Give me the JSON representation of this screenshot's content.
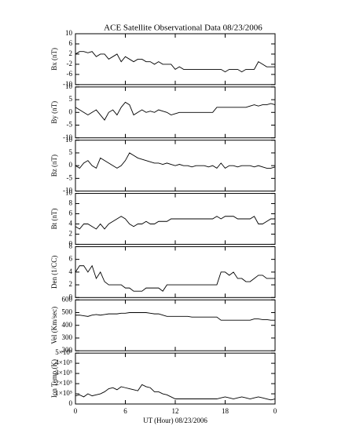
{
  "chart_data": [
    {
      "type": "line",
      "title": "ACE Satellite Observational Data   08/23/2006",
      "ylabel": "Bx (nT)",
      "color": "#000000",
      "ylim": [
        -10,
        10
      ],
      "yticks": [
        -10,
        -6,
        -2,
        2,
        6,
        10
      ],
      "x": [
        0,
        0.5,
        1,
        1.5,
        2,
        2.5,
        3,
        3.5,
        4,
        4.5,
        5,
        5.5,
        6,
        6.5,
        7,
        7.5,
        8,
        8.5,
        9,
        9.5,
        10,
        10.5,
        11,
        11.5,
        12,
        12.5,
        13,
        13.5,
        14,
        14.5,
        15,
        15.5,
        16,
        16.5,
        17,
        17.5,
        18,
        18.5,
        19,
        19.5,
        20,
        20.5,
        21,
        21.5,
        22,
        22.5,
        23,
        23.5,
        24
      ],
      "values": [
        2,
        3,
        3,
        2.5,
        3,
        1,
        2,
        2,
        0,
        1,
        2,
        -1,
        1,
        0,
        -1,
        0,
        0,
        -1,
        -1,
        -2,
        -1,
        -2,
        -2,
        -2,
        -4,
        -3,
        -4,
        -4,
        -4,
        -4,
        -4,
        -4,
        -4,
        -4,
        -4,
        -4,
        -5,
        -4,
        -4,
        -4,
        -5,
        -4,
        -4,
        -4,
        -1,
        -2,
        -3,
        -3,
        -3
      ]
    },
    {
      "type": "line",
      "ylabel": "By (nT)",
      "color": "#000000",
      "ylim": [
        -10,
        10
      ],
      "yticks": [
        -10,
        -5,
        0,
        5,
        10
      ],
      "x": [
        0,
        0.5,
        1,
        1.5,
        2,
        2.5,
        3,
        3.5,
        4,
        4.5,
        5,
        5.5,
        6,
        6.5,
        7,
        7.5,
        8,
        8.5,
        9,
        9.5,
        10,
        10.5,
        11,
        11.5,
        12,
        12.5,
        13,
        13.5,
        14,
        14.5,
        15,
        15.5,
        16,
        16.5,
        17,
        17.5,
        18,
        18.5,
        19,
        19.5,
        20,
        20.5,
        21,
        21.5,
        22,
        22.5,
        23,
        23.5,
        24
      ],
      "values": [
        2,
        1,
        0,
        -1,
        0,
        1,
        -1,
        -3,
        0,
        1,
        -1,
        2,
        4,
        3,
        -1,
        0,
        1,
        0,
        0.5,
        0,
        1,
        0.5,
        0,
        -1,
        -0.5,
        0,
        0,
        0,
        0,
        0,
        0,
        0,
        0,
        0,
        2,
        2,
        2,
        2,
        2,
        2,
        2,
        2,
        2.5,
        3,
        2.5,
        3,
        3,
        3.5,
        3
      ]
    },
    {
      "type": "line",
      "ylabel": "Bz (nT)",
      "color": "#000000",
      "ylim": [
        -10,
        10
      ],
      "yticks": [
        -10,
        -5,
        0,
        5,
        10
      ],
      "x": [
        0,
        0.5,
        1,
        1.5,
        2,
        2.5,
        3,
        3.5,
        4,
        4.5,
        5,
        5.5,
        6,
        6.5,
        7,
        7.5,
        8,
        8.5,
        9,
        9.5,
        10,
        10.5,
        11,
        11.5,
        12,
        12.5,
        13,
        13.5,
        14,
        14.5,
        15,
        15.5,
        16,
        16.5,
        17,
        17.5,
        18,
        18.5,
        19,
        19.5,
        20,
        20.5,
        21,
        21.5,
        22,
        22.5,
        23,
        23.5,
        24
      ],
      "values": [
        0,
        -1,
        1,
        2,
        0,
        -1,
        3,
        2,
        1,
        0,
        -1,
        0,
        2,
        5,
        4,
        3,
        2.5,
        2,
        1.5,
        1,
        1,
        0.5,
        1,
        0.5,
        0,
        0.5,
        0,
        0,
        -0.5,
        0,
        0,
        0,
        -0.5,
        0,
        -1,
        1,
        -1,
        0,
        0,
        -0.5,
        0,
        0,
        0,
        -0.5,
        0,
        -0.5,
        -1,
        -1,
        -0.5
      ]
    },
    {
      "type": "line",
      "ylabel": "Bt (nT)",
      "color": "#000000",
      "ylim": [
        0,
        10
      ],
      "yticks": [
        0,
        2,
        4,
        6,
        8,
        10
      ],
      "x": [
        0,
        0.5,
        1,
        1.5,
        2,
        2.5,
        3,
        3.5,
        4,
        4.5,
        5,
        5.5,
        6,
        6.5,
        7,
        7.5,
        8,
        8.5,
        9,
        9.5,
        10,
        10.5,
        11,
        11.5,
        12,
        12.5,
        13,
        13.5,
        14,
        14.5,
        15,
        15.5,
        16,
        16.5,
        17,
        17.5,
        18,
        18.5,
        19,
        19.5,
        20,
        20.5,
        21,
        21.5,
        22,
        22.5,
        23,
        23.5,
        24
      ],
      "values": [
        3.5,
        3,
        4,
        4,
        3.5,
        3,
        4,
        3,
        4,
        4.5,
        5,
        5.5,
        5,
        4,
        3.5,
        4,
        4,
        4.5,
        4,
        4,
        4.5,
        4.5,
        4.5,
        5,
        5,
        5,
        5,
        5,
        5,
        5,
        5,
        5,
        5,
        5,
        5.5,
        5,
        5.5,
        5.5,
        5.5,
        5,
        5,
        5,
        5,
        5.5,
        4,
        4,
        4.5,
        5,
        5
      ]
    },
    {
      "type": "line",
      "ylabel": "Den (1/CC)",
      "color": "#000000",
      "ylim": [
        0,
        8
      ],
      "yticks": [
        0,
        2,
        4,
        6,
        8
      ],
      "x": [
        0,
        0.5,
        1,
        1.5,
        2,
        2.5,
        3,
        3.5,
        4,
        4.5,
        5,
        5.5,
        6,
        6.5,
        7,
        7.5,
        8,
        8.5,
        9,
        9.5,
        10,
        10.5,
        11,
        11.5,
        12,
        12.5,
        13,
        13.5,
        14,
        14.5,
        15,
        15.5,
        16,
        16.5,
        17,
        17.5,
        18,
        18.5,
        19,
        19.5,
        20,
        20.5,
        21,
        21.5,
        22,
        22.5,
        23,
        23.5,
        24
      ],
      "values": [
        4,
        5,
        5,
        4,
        5,
        3,
        4,
        2.5,
        2,
        2,
        2,
        2,
        1.5,
        1.5,
        1,
        1,
        1,
        1.5,
        1.5,
        1.5,
        1.5,
        1,
        2,
        2,
        2,
        2,
        2,
        2,
        2,
        2,
        2,
        2,
        2,
        2,
        2,
        4,
        4,
        3.5,
        4,
        3,
        3,
        2.5,
        2.5,
        3,
        3.5,
        3.5,
        3,
        3,
        3
      ]
    },
    {
      "type": "line",
      "ylabel": "Vel (Km/sec)",
      "color": "#000000",
      "ylim": [
        200,
        600
      ],
      "yticks": [
        200,
        300,
        400,
        500,
        600
      ],
      "x": [
        0,
        0.5,
        1,
        1.5,
        2,
        2.5,
        3,
        3.5,
        4,
        4.5,
        5,
        5.5,
        6,
        6.5,
        7,
        7.5,
        8,
        8.5,
        9,
        9.5,
        10,
        10.5,
        11,
        11.5,
        12,
        12.5,
        13,
        13.5,
        14,
        14.5,
        15,
        15.5,
        16,
        16.5,
        17,
        17.5,
        18,
        18.5,
        19,
        19.5,
        20,
        20.5,
        21,
        21.5,
        22,
        22.5,
        23,
        23.5,
        24
      ],
      "values": [
        480,
        480,
        475,
        470,
        480,
        485,
        480,
        485,
        490,
        490,
        490,
        495,
        495,
        500,
        500,
        500,
        500,
        500,
        495,
        490,
        490,
        480,
        470,
        470,
        470,
        470,
        470,
        470,
        465,
        465,
        465,
        465,
        465,
        465,
        465,
        440,
        440,
        440,
        440,
        440,
        440,
        440,
        440,
        450,
        450,
        445,
        445,
        440,
        440
      ]
    },
    {
      "type": "line",
      "ylabel": "Ion Temp (K)",
      "color": "#000000",
      "ylim": [
        0,
        500000
      ],
      "yticks": [
        0,
        {
          "value": 100000,
          "label": "1×10⁵"
        },
        {
          "value": 200000,
          "label": "2×10⁵"
        },
        {
          "value": 300000,
          "label": "3×10⁵"
        },
        {
          "value": 400000,
          "label": "4×10⁵"
        },
        {
          "value": 500000,
          "label": "5×10⁵"
        }
      ],
      "xlabel": "UT (Hour)  08/23/2006",
      "xlim": [
        0,
        24
      ],
      "xticks": [
        0,
        6,
        12,
        18,
        {
          "value": 24,
          "label": "0"
        }
      ],
      "x": [
        0,
        0.5,
        1,
        1.5,
        2,
        2.5,
        3,
        3.5,
        4,
        4.5,
        5,
        5.5,
        6,
        6.5,
        7,
        7.5,
        8,
        8.5,
        9,
        9.5,
        10,
        10.5,
        11,
        11.5,
        12,
        12.5,
        13,
        13.5,
        14,
        14.5,
        15,
        15.5,
        16,
        16.5,
        17,
        17.5,
        18,
        18.5,
        19,
        19.5,
        20,
        20.5,
        21,
        21.5,
        22,
        22.5,
        23,
        23.5,
        24
      ],
      "values": [
        80000,
        90000,
        70000,
        100000,
        80000,
        90000,
        100000,
        120000,
        150000,
        160000,
        140000,
        170000,
        160000,
        150000,
        140000,
        130000,
        190000,
        170000,
        160000,
        120000,
        120000,
        100000,
        90000,
        70000,
        50000,
        50000,
        50000,
        50000,
        50000,
        50000,
        50000,
        50000,
        50000,
        50000,
        50000,
        60000,
        70000,
        60000,
        50000,
        60000,
        70000,
        60000,
        50000,
        60000,
        70000,
        60000,
        50000,
        40000,
        50000
      ]
    }
  ]
}
